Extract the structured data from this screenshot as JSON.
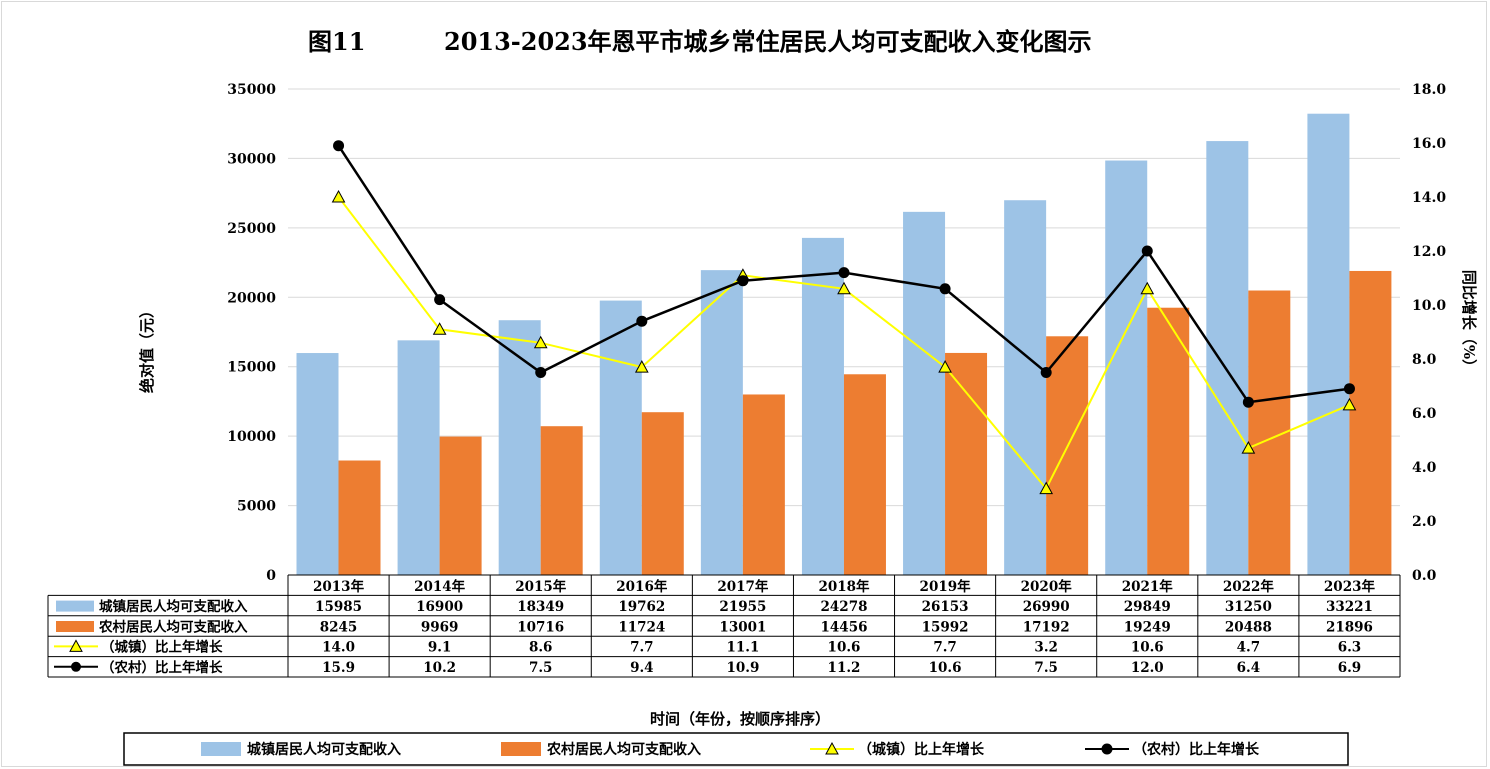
{
  "title_prefix": "图11",
  "title": "2013-2023年恩平市城乡常住居民人均可支配收入变化图示",
  "chart_data": {
    "type": "bar",
    "categories": [
      "2013年",
      "2014年",
      "2015年",
      "2016年",
      "2017年",
      "2018年",
      "2019年",
      "2020年",
      "2021年",
      "2022年",
      "2023年"
    ],
    "series": [
      {
        "name": "城镇居民人均可支配收入",
        "type": "bar",
        "axis": "left",
        "color": "#9dc3e6",
        "values": [
          15985,
          16900,
          18349,
          19762,
          21955,
          24278,
          26153,
          26990,
          29849,
          31250,
          33221
        ]
      },
      {
        "name": "农村居民人均可支配收入",
        "type": "bar",
        "axis": "left",
        "color": "#ed7d31",
        "values": [
          8245,
          9969,
          10716,
          11724,
          13001,
          14456,
          15992,
          17192,
          19249,
          20488,
          21896
        ]
      },
      {
        "name": "（城镇）比上年增长",
        "type": "line",
        "axis": "right",
        "color": "#ffff00",
        "marker": "triangle",
        "values": [
          14.0,
          9.1,
          8.6,
          7.7,
          11.1,
          10.6,
          7.7,
          3.2,
          10.6,
          4.7,
          6.3
        ]
      },
      {
        "name": "（农村）比上年增长",
        "type": "line",
        "axis": "right",
        "color": "#000000",
        "marker": "circle",
        "values": [
          15.9,
          10.2,
          7.5,
          9.4,
          10.9,
          11.2,
          10.6,
          7.5,
          12.0,
          6.4,
          6.9
        ]
      }
    ],
    "table_values": [
      [
        "15985",
        "16900",
        "18349",
        "19762",
        "21955",
        "24278",
        "26153",
        "26990",
        "29849",
        "31250",
        "33221"
      ],
      [
        "8245",
        "9969",
        "10716",
        "11724",
        "13001",
        "14456",
        "15992",
        "17192",
        "19249",
        "20488",
        "21896"
      ],
      [
        "14.0",
        "9.1",
        "8.6",
        "7.7",
        "11.1",
        "10.6",
        "7.7",
        "3.2",
        "10.6",
        "4.7",
        "6.3"
      ],
      [
        "15.9",
        "10.2",
        "7.5",
        "9.4",
        "10.9",
        "11.2",
        "10.6",
        "7.5",
        "12.0",
        "6.4",
        "6.9"
      ]
    ],
    "ylabel_left": "绝对值（元）",
    "ylabel_right": "同比增长（%）",
    "xlabel": "时间（年份，按顺序排序）",
    "ylim_left": [
      0,
      35000
    ],
    "ylim_right": [
      0,
      18
    ],
    "yticks_left": [
      "0",
      "5000",
      "10000",
      "15000",
      "20000",
      "25000",
      "30000",
      "35000"
    ],
    "yticks_right": [
      "0.0",
      "2.0",
      "4.0",
      "6.0",
      "8.0",
      "10.0",
      "12.0",
      "14.0",
      "16.0",
      "18.0"
    ],
    "grid": true,
    "legend_position": "bottom",
    "data_table": true
  }
}
